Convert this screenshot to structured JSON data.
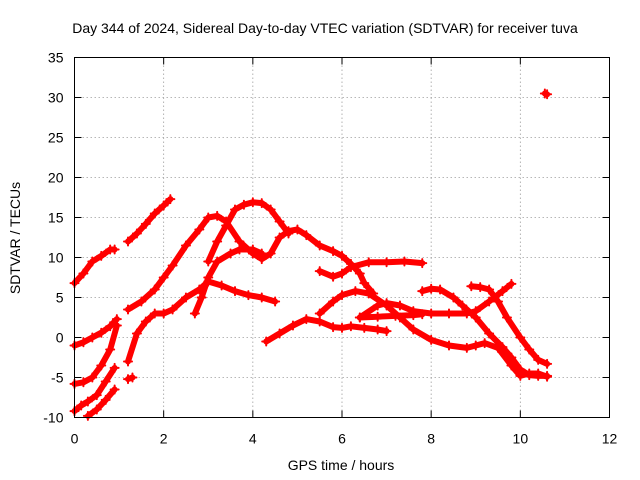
{
  "chart_data": {
    "type": "scatter",
    "title": "Day 344 of 2024, Sidereal Day-to-day VTEC variation (SDTVAR) for receiver tuva",
    "xlabel": "GPS time / hours",
    "ylabel": "SDTVAR / TECUs",
    "xlim": [
      0,
      12
    ],
    "ylim": [
      -10,
      35
    ],
    "x_ticks": [
      0,
      2,
      4,
      6,
      8,
      10,
      12
    ],
    "y_ticks": [
      -10,
      -5,
      0,
      5,
      10,
      15,
      20,
      25,
      30,
      35
    ],
    "grid": true,
    "marker": "+",
    "color": "#ff0000",
    "series": [
      {
        "name": "s1",
        "points": [
          [
            0.0,
            6.8
          ],
          [
            0.2,
            8.0
          ],
          [
            0.4,
            9.5
          ],
          [
            0.6,
            10.2
          ],
          [
            0.8,
            11.0
          ],
          [
            0.9,
            11.0
          ]
        ]
      },
      {
        "name": "s2",
        "points": [
          [
            1.2,
            12.0
          ],
          [
            1.4,
            13.0
          ],
          [
            1.6,
            14.2
          ],
          [
            1.8,
            15.5
          ],
          [
            2.0,
            16.5
          ],
          [
            2.15,
            17.3
          ]
        ]
      },
      {
        "name": "s3",
        "points": [
          [
            0.0,
            -1.0
          ],
          [
            0.2,
            -0.6
          ],
          [
            0.4,
            0.0
          ],
          [
            0.6,
            0.6
          ],
          [
            0.8,
            1.4
          ],
          [
            0.95,
            2.3
          ]
        ]
      },
      {
        "name": "s4",
        "points": [
          [
            0.0,
            -5.8
          ],
          [
            0.2,
            -5.6
          ],
          [
            0.4,
            -5.0
          ],
          [
            0.6,
            -3.5
          ],
          [
            0.8,
            -1.5
          ],
          [
            0.95,
            1.5
          ]
        ]
      },
      {
        "name": "s5",
        "points": [
          [
            0.0,
            -9.2
          ],
          [
            0.15,
            -8.5
          ],
          [
            0.3,
            -8.0
          ],
          [
            0.5,
            -7.2
          ],
          [
            0.7,
            -5.5
          ],
          [
            0.9,
            -3.8
          ]
        ]
      },
      {
        "name": "s6",
        "points": [
          [
            0.3,
            -9.8
          ],
          [
            0.5,
            -9.0
          ],
          [
            0.7,
            -7.8
          ],
          [
            0.9,
            -6.5
          ]
        ]
      },
      {
        "name": "s7",
        "points": [
          [
            1.2,
            -5.2
          ],
          [
            1.3,
            -5.0
          ]
        ]
      },
      {
        "name": "s8",
        "points": [
          [
            1.2,
            -3.0
          ],
          [
            1.4,
            0.5
          ],
          [
            1.6,
            2.0
          ],
          [
            1.8,
            3.0
          ],
          [
            2.0,
            3.0
          ],
          [
            2.2,
            3.5
          ],
          [
            2.5,
            5.0
          ],
          [
            2.8,
            6.0
          ],
          [
            3.0,
            7.0
          ],
          [
            3.3,
            6.5
          ],
          [
            3.6,
            5.8
          ],
          [
            3.9,
            5.3
          ],
          [
            4.2,
            5.0
          ],
          [
            4.5,
            4.5
          ]
        ]
      },
      {
        "name": "s9",
        "points": [
          [
            1.2,
            3.5
          ],
          [
            1.5,
            4.5
          ],
          [
            1.8,
            6.0
          ],
          [
            2.0,
            7.5
          ],
          [
            2.2,
            9.0
          ],
          [
            2.5,
            11.5
          ],
          [
            2.8,
            13.5
          ],
          [
            3.0,
            15.0
          ],
          [
            3.2,
            15.2
          ],
          [
            3.4,
            14.5
          ],
          [
            3.7,
            12.0
          ],
          [
            4.0,
            10.5
          ],
          [
            4.2,
            9.8
          ],
          [
            4.4,
            10.5
          ],
          [
            4.6,
            12.5
          ],
          [
            4.8,
            13.3
          ],
          [
            5.0,
            13.5
          ],
          [
            5.2,
            12.8
          ],
          [
            5.5,
            11.5
          ],
          [
            5.8,
            10.8
          ],
          [
            6.0,
            10.2
          ],
          [
            6.2,
            9.2
          ],
          [
            6.4,
            8.0
          ],
          [
            6.5,
            6.8
          ],
          [
            6.7,
            5.5
          ]
        ]
      },
      {
        "name": "s10",
        "points": [
          [
            2.7,
            3.0
          ],
          [
            2.85,
            5.0
          ],
          [
            3.0,
            7.5
          ],
          [
            3.2,
            9.5
          ],
          [
            3.5,
            10.5
          ],
          [
            3.7,
            11.0
          ],
          [
            4.0,
            11.0
          ],
          [
            4.2,
            10.5
          ]
        ]
      },
      {
        "name": "s11",
        "points": [
          [
            3.0,
            9.5
          ],
          [
            3.2,
            12.0
          ],
          [
            3.4,
            14.0
          ],
          [
            3.6,
            16.0
          ],
          [
            3.8,
            16.6
          ],
          [
            4.0,
            16.9
          ],
          [
            4.2,
            16.8
          ],
          [
            4.4,
            16.0
          ],
          [
            4.6,
            14.5
          ],
          [
            4.8,
            13.0
          ]
        ]
      },
      {
        "name": "s12",
        "points": [
          [
            4.3,
            -0.5
          ],
          [
            4.6,
            0.5
          ],
          [
            4.9,
            1.5
          ],
          [
            5.2,
            2.3
          ],
          [
            5.5,
            2.0
          ],
          [
            5.8,
            1.3
          ],
          [
            6.0,
            1.2
          ],
          [
            6.2,
            1.4
          ],
          [
            6.5,
            1.2
          ],
          [
            6.8,
            1.0
          ],
          [
            7.0,
            0.8
          ]
        ]
      },
      {
        "name": "s13",
        "points": [
          [
            5.5,
            8.3
          ],
          [
            5.8,
            7.6
          ],
          [
            6.0,
            8.0
          ],
          [
            6.2,
            8.8
          ],
          [
            6.6,
            9.4
          ],
          [
            7.0,
            9.4
          ],
          [
            7.4,
            9.5
          ],
          [
            7.8,
            9.3
          ]
        ]
      },
      {
        "name": "s14",
        "points": [
          [
            5.5,
            3.0
          ],
          [
            5.8,
            4.5
          ],
          [
            6.0,
            5.3
          ],
          [
            6.3,
            5.8
          ],
          [
            6.6,
            5.5
          ],
          [
            7.0,
            4.0
          ],
          [
            7.3,
            2.5
          ],
          [
            7.6,
            1.0
          ],
          [
            8.0,
            -0.3
          ],
          [
            8.4,
            -1.0
          ],
          [
            8.8,
            -1.3
          ],
          [
            9.0,
            -1.0
          ],
          [
            9.2,
            -0.7
          ],
          [
            9.5,
            -1.3
          ],
          [
            9.8,
            -3.5
          ],
          [
            10.0,
            -4.8
          ],
          [
            10.2,
            -4.5
          ],
          [
            10.4,
            -4.5
          ],
          [
            10.6,
            -4.9
          ]
        ]
      },
      {
        "name": "s15",
        "points": [
          [
            6.4,
            2.5
          ],
          [
            6.8,
            4.0
          ],
          [
            7.0,
            4.3
          ],
          [
            7.3,
            4.0
          ],
          [
            7.6,
            3.3
          ],
          [
            8.0,
            3.0
          ],
          [
            8.4,
            3.0
          ],
          [
            8.8,
            3.0
          ],
          [
            9.0,
            3.3
          ],
          [
            9.3,
            4.5
          ],
          [
            9.6,
            5.8
          ],
          [
            9.8,
            6.7
          ]
        ]
      },
      {
        "name": "s16",
        "points": [
          [
            6.4,
            2.5
          ],
          [
            6.8,
            2.6
          ],
          [
            7.2,
            2.7
          ],
          [
            7.6,
            2.8
          ],
          [
            7.8,
            2.9
          ]
        ]
      },
      {
        "name": "s17",
        "points": [
          [
            7.8,
            5.8
          ],
          [
            8.0,
            6.1
          ],
          [
            8.2,
            6.0
          ],
          [
            8.5,
            5.0
          ],
          [
            8.7,
            4.0
          ],
          [
            9.0,
            2.5
          ],
          [
            9.3,
            0.5
          ],
          [
            9.6,
            -1.2
          ],
          [
            9.8,
            -2.5
          ],
          [
            10.0,
            -4.0
          ],
          [
            10.2,
            -4.7
          ],
          [
            10.4,
            -4.8
          ],
          [
            10.6,
            -4.8
          ]
        ]
      },
      {
        "name": "s18",
        "points": [
          [
            8.9,
            6.4
          ],
          [
            9.1,
            6.3
          ],
          [
            9.3,
            6.0
          ],
          [
            9.5,
            4.5
          ],
          [
            9.7,
            2.5
          ],
          [
            10.0,
            0.0
          ],
          [
            10.2,
            -1.5
          ],
          [
            10.4,
            -2.8
          ],
          [
            10.6,
            -3.3
          ]
        ]
      },
      {
        "name": "s19",
        "points": [
          [
            10.55,
            30.5
          ],
          [
            10.6,
            30.4
          ]
        ]
      }
    ]
  }
}
